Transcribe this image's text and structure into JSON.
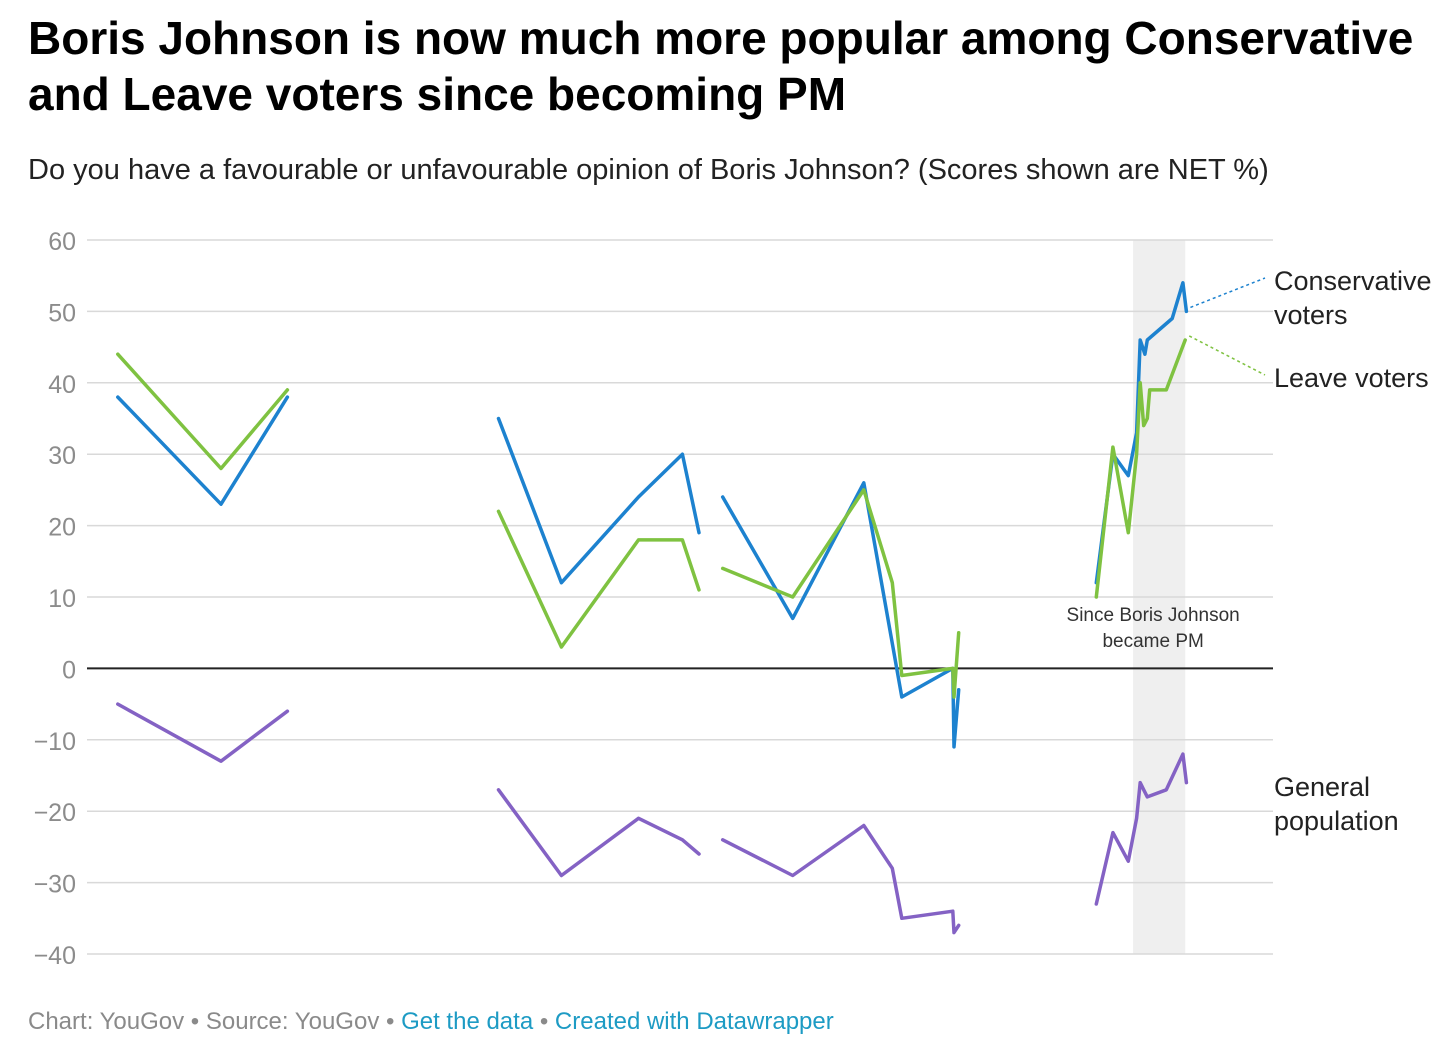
{
  "header": {
    "title": "Boris Johnson is now much more popular among Conservative and Leave voters since becoming PM",
    "subtitle": "Do you have a favourable or unfavourable opinion of Boris Johnson? (Scores shown are NET %)"
  },
  "footer": {
    "chart_credit": "Chart: YouGov",
    "source": "Source: YouGov",
    "get_data": "Get the data",
    "created_with": "Created with Datawrapper",
    "separator": "•"
  },
  "chart_data": {
    "type": "line",
    "title": "Boris Johnson is now much more popular among Conservative and Leave voters since becoming PM",
    "subtitle": "Do you have a favourable or unfavourable opinion of Boris Johnson? (Scores shown are NET %)",
    "xlabel": "",
    "ylabel": "",
    "ylim": [
      -40,
      60
    ],
    "yticks": [
      60,
      50,
      40,
      30,
      20,
      10,
      0,
      -10,
      -20,
      -30,
      -40
    ],
    "xlim": [
      0,
      100
    ],
    "grid": true,
    "highlight": {
      "x_range": [
        88.2,
        92.6
      ],
      "label": "Since Boris Johnson became PM",
      "color": "#efefef"
    },
    "series": [
      {
        "name": "Conservative voters",
        "color": "#1d82cf",
        "segments": [
          [
            [
              2.6,
              38
            ],
            [
              11.3,
              23
            ],
            [
              16.9,
              38
            ]
          ],
          [
            [
              34.7,
              35
            ],
            [
              40.0,
              12
            ],
            [
              46.5,
              24
            ],
            [
              50.2,
              30
            ],
            [
              51.6,
              19
            ]
          ],
          [
            [
              53.6,
              24
            ],
            [
              59.5,
              7
            ],
            [
              65.5,
              26
            ],
            [
              68.7,
              -4
            ],
            [
              73.0,
              0
            ],
            [
              73.1,
              -11
            ],
            [
              73.5,
              -3
            ]
          ],
          [
            [
              85.1,
              12
            ],
            [
              86.5,
              30
            ],
            [
              87.8,
              27
            ],
            [
              88.5,
              33
            ],
            [
              88.8,
              46
            ],
            [
              89.2,
              44
            ],
            [
              89.4,
              46
            ],
            [
              91.5,
              49
            ],
            [
              92.4,
              54
            ],
            [
              92.7,
              50
            ]
          ]
        ]
      },
      {
        "name": "Leave voters",
        "color": "#7fc241",
        "segments": [
          [
            [
              2.6,
              44
            ],
            [
              11.3,
              28
            ],
            [
              16.9,
              39
            ]
          ],
          [
            [
              34.7,
              22
            ],
            [
              40.0,
              3
            ],
            [
              46.5,
              18
            ],
            [
              50.2,
              18
            ],
            [
              51.6,
              11
            ]
          ],
          [
            [
              53.6,
              14
            ],
            [
              59.5,
              10
            ],
            [
              65.5,
              25
            ],
            [
              67.9,
              12
            ],
            [
              68.7,
              -1
            ],
            [
              73.0,
              0
            ],
            [
              73.1,
              -4
            ],
            [
              73.5,
              5
            ]
          ],
          [
            [
              85.1,
              10
            ],
            [
              86.5,
              31
            ],
            [
              87.8,
              19
            ],
            [
              88.5,
              30
            ],
            [
              88.8,
              40
            ],
            [
              89.1,
              34
            ],
            [
              89.4,
              35
            ],
            [
              89.6,
              39
            ],
            [
              91.0,
              39
            ],
            [
              92.6,
              46
            ]
          ]
        ]
      },
      {
        "name": "General population",
        "color": "#8462c4",
        "segments": [
          [
            [
              2.6,
              -5
            ],
            [
              11.3,
              -13
            ],
            [
              16.9,
              -6
            ]
          ],
          [
            [
              34.7,
              -17
            ],
            [
              40.0,
              -29
            ],
            [
              46.5,
              -21
            ],
            [
              50.2,
              -24
            ],
            [
              51.6,
              -26
            ]
          ],
          [
            [
              53.6,
              -24
            ],
            [
              59.5,
              -29
            ],
            [
              65.5,
              -22
            ],
            [
              67.9,
              -28
            ],
            [
              68.7,
              -35
            ],
            [
              73.0,
              -34
            ],
            [
              73.1,
              -37
            ],
            [
              73.5,
              -36
            ]
          ],
          [
            [
              85.1,
              -33
            ],
            [
              86.5,
              -23
            ],
            [
              87.8,
              -27
            ],
            [
              88.5,
              -21
            ],
            [
              88.8,
              -16
            ],
            [
              89.1,
              -17
            ],
            [
              89.4,
              -18
            ],
            [
              91.0,
              -17
            ],
            [
              92.4,
              -12
            ],
            [
              92.7,
              -16
            ]
          ]
        ]
      }
    ],
    "labels": [
      {
        "series": "Conservative voters",
        "lines": [
          "Conservative",
          "voters"
        ]
      },
      {
        "series": "Leave voters",
        "lines": [
          "Leave voters"
        ]
      },
      {
        "series": "General population",
        "lines": [
          "General",
          "population"
        ]
      }
    ]
  }
}
